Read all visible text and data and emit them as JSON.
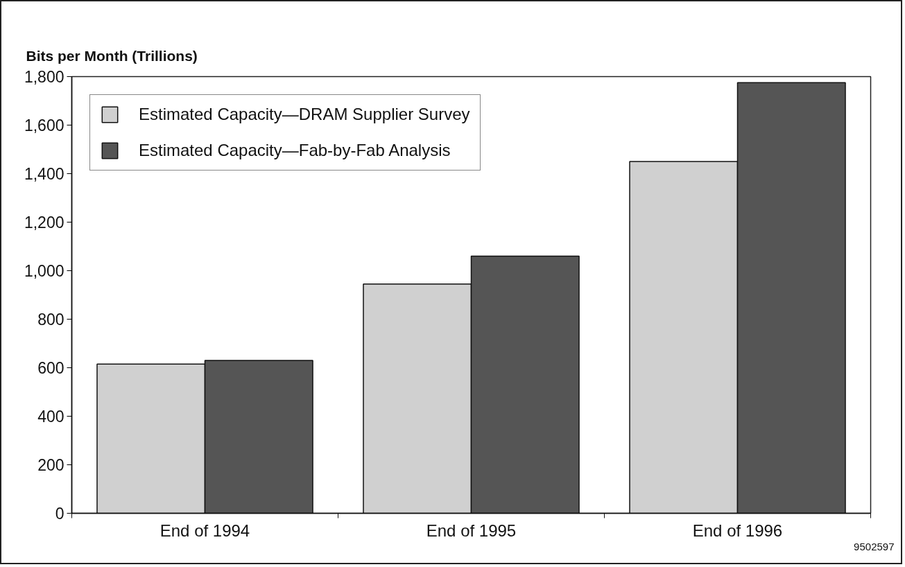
{
  "chart_data": {
    "type": "bar",
    "ylabel": "Bits per Month (Trillions)",
    "categories": [
      "End of 1994",
      "End of 1995",
      "End of 1996"
    ],
    "series": [
      {
        "name": "Estimated Capacity—DRAM Supplier Survey",
        "color": "#d0d0d0",
        "values": [
          615,
          945,
          1450
        ]
      },
      {
        "name": "Estimated Capacity—Fab-by-Fab Analysis",
        "color": "#555555",
        "values": [
          630,
          1060,
          1775
        ]
      }
    ],
    "ylim": [
      0,
      1800
    ],
    "yticks": [
      0,
      200,
      400,
      600,
      800,
      {
        "value": 1000,
        "label": "1,000"
      },
      {
        "value": 1200,
        "label": "1,200"
      },
      {
        "value": 1400,
        "label": "1,400"
      },
      {
        "value": 1600,
        "label": "1,600"
      },
      {
        "value": 1800,
        "label": "1,800"
      }
    ],
    "grid": false,
    "legend": "top left",
    "annotations": [
      "9502597"
    ]
  }
}
